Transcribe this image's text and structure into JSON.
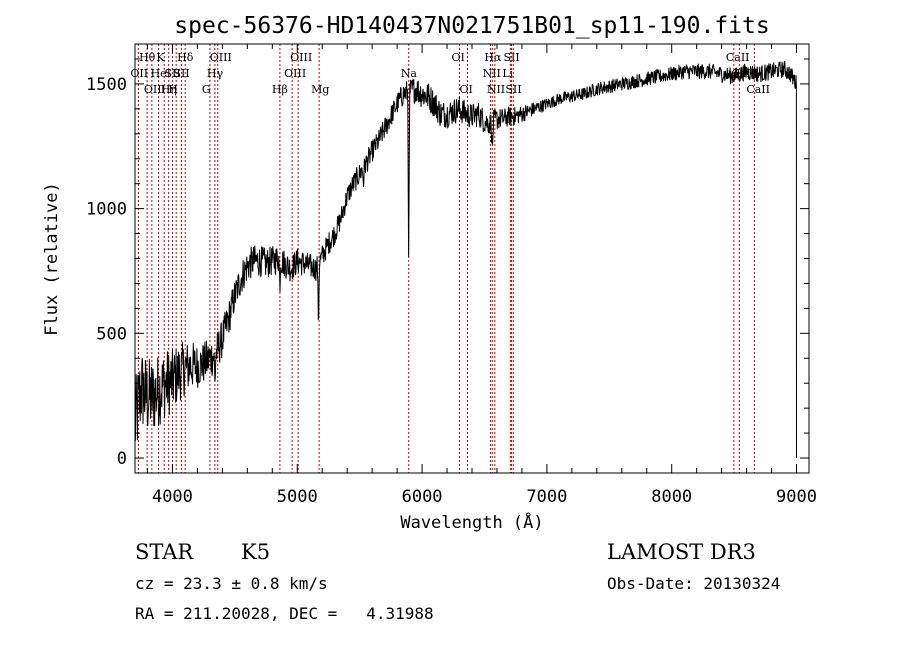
{
  "chart_data": {
    "type": "line",
    "title": "spec-56376-HD140437N021751B01_sp11-190.fits",
    "xlabel": "Wavelength (Å)",
    "ylabel": "Flux (relative)",
    "xlim": [
      3700,
      9100
    ],
    "ylim": [
      -60,
      1660
    ],
    "x_ticks": [
      4000,
      5000,
      6000,
      7000,
      8000,
      9000
    ],
    "y_ticks": [
      0,
      500,
      1000,
      1500
    ],
    "series": [
      {
        "name": "spectrum",
        "anchors": [
          [
            3700,
            130
          ],
          [
            3750,
            280
          ],
          [
            3800,
            240
          ],
          [
            3850,
            250
          ],
          [
            3900,
            280
          ],
          [
            3950,
            300
          ],
          [
            4000,
            310
          ],
          [
            4050,
            340
          ],
          [
            4100,
            360
          ],
          [
            4150,
            370
          ],
          [
            4200,
            370
          ],
          [
            4250,
            380
          ],
          [
            4300,
            400
          ],
          [
            4350,
            420
          ],
          [
            4400,
            480
          ],
          [
            4450,
            560
          ],
          [
            4500,
            650
          ],
          [
            4550,
            720
          ],
          [
            4600,
            770
          ],
          [
            4650,
            790
          ],
          [
            4700,
            790
          ],
          [
            4750,
            780
          ],
          [
            4800,
            790
          ],
          [
            4850,
            800
          ],
          [
            4900,
            780
          ],
          [
            4950,
            760
          ],
          [
            5000,
            790
          ],
          [
            5050,
            780
          ],
          [
            5100,
            770
          ],
          [
            5150,
            760
          ],
          [
            5200,
            810
          ],
          [
            5250,
            860
          ],
          [
            5300,
            900
          ],
          [
            5350,
            960
          ],
          [
            5400,
            1050
          ],
          [
            5450,
            1100
          ],
          [
            5500,
            1140
          ],
          [
            5550,
            1180
          ],
          [
            5600,
            1230
          ],
          [
            5650,
            1270
          ],
          [
            5700,
            1320
          ],
          [
            5750,
            1370
          ],
          [
            5800,
            1420
          ],
          [
            5850,
            1460
          ],
          [
            5900,
            1470
          ],
          [
            5950,
            1480
          ],
          [
            6000,
            1460
          ],
          [
            6050,
            1450
          ],
          [
            6100,
            1420
          ],
          [
            6150,
            1380
          ],
          [
            6200,
            1380
          ],
          [
            6250,
            1390
          ],
          [
            6300,
            1400
          ],
          [
            6350,
            1380
          ],
          [
            6400,
            1370
          ],
          [
            6450,
            1380
          ],
          [
            6500,
            1350
          ],
          [
            6550,
            1340
          ],
          [
            6600,
            1360
          ],
          [
            6650,
            1360
          ],
          [
            6700,
            1370
          ],
          [
            6750,
            1370
          ],
          [
            6800,
            1380
          ],
          [
            6900,
            1400
          ],
          [
            7000,
            1420
          ],
          [
            7100,
            1440
          ],
          [
            7200,
            1450
          ],
          [
            7300,
            1460
          ],
          [
            7400,
            1480
          ],
          [
            7500,
            1490
          ],
          [
            7600,
            1500
          ],
          [
            7700,
            1510
          ],
          [
            7800,
            1520
          ],
          [
            7900,
            1530
          ],
          [
            8000,
            1540
          ],
          [
            8100,
            1550
          ],
          [
            8200,
            1550
          ],
          [
            8300,
            1550
          ],
          [
            8400,
            1540
          ],
          [
            8500,
            1530
          ],
          [
            8600,
            1550
          ],
          [
            8700,
            1540
          ],
          [
            8800,
            1550
          ],
          [
            8900,
            1560
          ],
          [
            8950,
            1540
          ],
          [
            9000,
            1500
          ]
        ],
        "dips": [
          [
            4340,
            120
          ],
          [
            4860,
            100
          ],
          [
            5170,
            250
          ],
          [
            5893,
            700
          ],
          [
            6563,
            120
          ],
          [
            5530,
            60
          ]
        ],
        "noise": [
          [
            3700,
            180
          ],
          [
            3950,
            140
          ],
          [
            4200,
            90
          ],
          [
            4500,
            70
          ],
          [
            5000,
            55
          ],
          [
            5300,
            45
          ],
          [
            5800,
            45
          ],
          [
            6000,
            60
          ],
          [
            6500,
            50
          ],
          [
            7000,
            25
          ],
          [
            8000,
            30
          ],
          [
            8600,
            35
          ],
          [
            9000,
            35
          ]
        ]
      }
    ],
    "line_marks": [
      {
        "w": 3797,
        "labels": [
          [
            "Hθ",
            0
          ]
        ]
      },
      {
        "w": 3727,
        "labels": [
          [
            "OII",
            1
          ]
        ]
      },
      {
        "w": 3835,
        "labels": [
          [
            "OIII",
            2
          ]
        ]
      },
      {
        "w": 3889,
        "labels": [
          [
            "HeI",
            1
          ]
        ]
      },
      {
        "w": 3934,
        "labels": [
          [
            "K",
            0
          ]
        ]
      },
      {
        "w": 3970,
        "labels": [
          [
            "Hη",
            2
          ]
        ]
      },
      {
        "w": 4000,
        "labels": [
          [
            "SII",
            1
          ]
        ]
      },
      {
        "w": 4030,
        "labels": [
          [
            "H",
            2
          ]
        ]
      },
      {
        "w": 4102,
        "labels": [
          [
            "Hδ",
            0
          ]
        ]
      },
      {
        "w": 4072,
        "labels": [
          [
            "SII",
            1
          ]
        ]
      },
      {
        "w": 4300,
        "labels": [
          [
            "G",
            2
          ]
        ]
      },
      {
        "w": 4340,
        "labels": [
          [
            "Hγ",
            1
          ]
        ]
      },
      {
        "w": 4363,
        "labels": [
          [
            "OIII",
            0
          ]
        ]
      },
      {
        "w": 4861,
        "labels": [
          [
            "Hβ",
            2
          ]
        ]
      },
      {
        "w": 4959,
        "labels": [
          [
            "OIII",
            1
          ]
        ]
      },
      {
        "w": 5007,
        "labels": [
          [
            "OIII",
            0
          ]
        ]
      },
      {
        "w": 5175,
        "labels": [
          [
            "Mg",
            2
          ]
        ]
      },
      {
        "w": 5893,
        "labels": [
          [
            "Na",
            1
          ]
        ]
      },
      {
        "w": 6300,
        "labels": [
          [
            "OI",
            0
          ]
        ]
      },
      {
        "w": 6364,
        "labels": [
          [
            "OI",
            2
          ]
        ]
      },
      {
        "w": 6548,
        "labels": [
          [
            "NII",
            1
          ]
        ]
      },
      {
        "w": 6563,
        "labels": [
          [
            "Hα",
            0
          ]
        ]
      },
      {
        "w": 6583,
        "labels": [
          [
            "NII",
            2
          ]
        ]
      },
      {
        "w": 6707,
        "labels": [
          [
            "Li",
            1
          ]
        ]
      },
      {
        "w": 6716,
        "labels": [
          [
            "SII",
            0
          ]
        ]
      },
      {
        "w": 6731,
        "labels": [
          [
            "SII",
            2
          ]
        ]
      },
      {
        "w": 8498,
        "labels": [
          [
            "CaII",
            0
          ]
        ]
      },
      {
        "w": 8542,
        "labels": [
          [
            "CaII",
            1
          ]
        ]
      },
      {
        "w": 8662,
        "labels": [
          [
            "CaII",
            2
          ]
        ]
      }
    ]
  },
  "info": {
    "class": "STAR",
    "subclass": "K5",
    "survey": "LAMOST DR3",
    "cz": "cz = 23.3 ± 0.8 km/s",
    "obs_date": "Obs-Date: 20130324",
    "coords": "RA = 211.20028, DEC =   4.31988"
  }
}
